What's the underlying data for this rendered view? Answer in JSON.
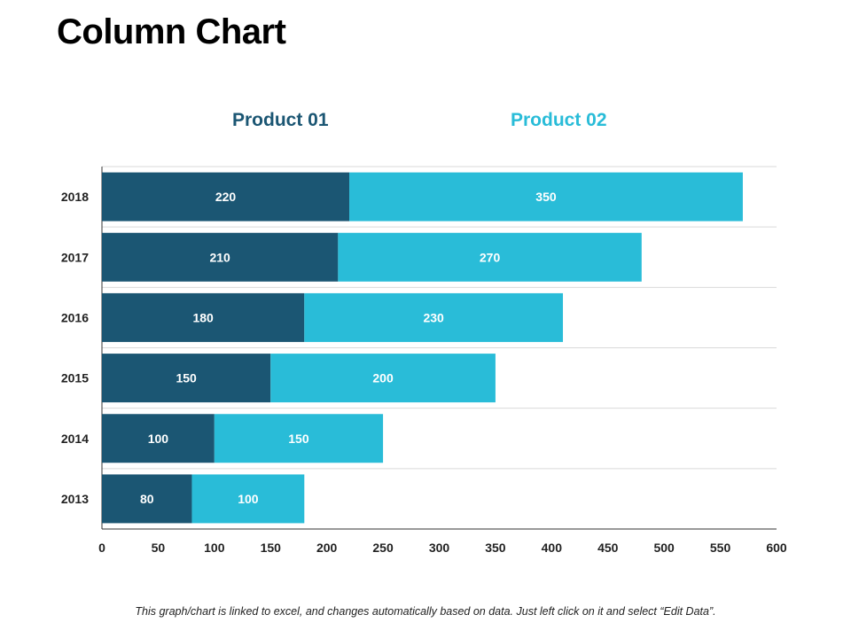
{
  "page": {
    "title": "Column Chart",
    "footer": "This graph/chart is linked to excel, and changes automatically based on data. Just left click on it and select “Edit Data”."
  },
  "colors": {
    "product01": "#1b5673",
    "product02": "#29bcd8",
    "grid": "#d9d9d9",
    "axis": "#333333"
  },
  "chart_data": {
    "type": "bar",
    "orientation": "horizontal",
    "stacked": true,
    "categories": [
      "2018",
      "2017",
      "2016",
      "2015",
      "2014",
      "2013"
    ],
    "series": [
      {
        "name": "Product 01",
        "values": [
          220,
          210,
          180,
          150,
          100,
          80
        ]
      },
      {
        "name": "Product 02",
        "values": [
          350,
          270,
          230,
          200,
          150,
          100
        ]
      }
    ],
    "xlim": [
      0,
      600
    ],
    "xticks": [
      0,
      50,
      100,
      150,
      200,
      250,
      300,
      350,
      400,
      450,
      500,
      550,
      600
    ],
    "grid": "horizontal",
    "legend_placement": "top"
  }
}
